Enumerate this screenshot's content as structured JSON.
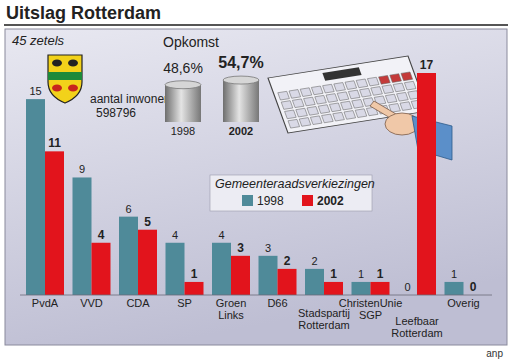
{
  "header": {
    "title": "Uitslag Rotterdam",
    "population_label": "aantal inwoners:",
    "population": 598796,
    "source": "anp"
  },
  "chart_data": [
    {
      "type": "bar",
      "title": "Gemeenteraadsverkiezingen",
      "subtitle": "45 zetels",
      "categories": [
        "PvdA",
        "VVD",
        "CDA",
        "SP",
        "Groen\nLinks",
        "D66",
        "Stadspartij\nRotterdam",
        "ChristenUnie\nSGP",
        "Leefbaar\nRotterdam",
        "Overig"
      ],
      "series": [
        {
          "name": "1998",
          "color": "#4f8a99",
          "values": [
            15,
            9,
            6,
            4,
            4,
            3,
            2,
            1,
            0,
            1
          ]
        },
        {
          "name": "2002",
          "color": "#e2141c",
          "values": [
            11,
            4,
            5,
            1,
            3,
            2,
            1,
            1,
            17,
            0
          ]
        }
      ],
      "ylim": [
        0,
        17
      ],
      "data_labels": true,
      "tick_labels": "x",
      "legend": "center",
      "grid": false
    },
    {
      "type": "bar",
      "title": "Opkomst",
      "categories": [
        "1998",
        "2002"
      ],
      "values": [
        48.6,
        54.7
      ],
      "value_labels": [
        "48,6%",
        "54,7%"
      ],
      "color": "#9c9c9c",
      "ylim": [
        0,
        60
      ],
      "data_labels": true,
      "tick_labels": "x",
      "grid": false
    }
  ]
}
